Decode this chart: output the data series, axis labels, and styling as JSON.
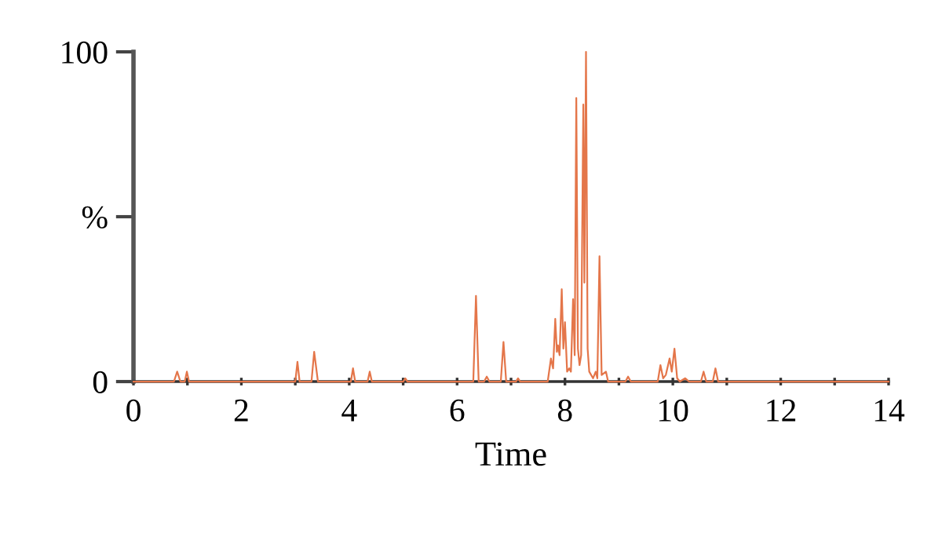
{
  "chart_data": {
    "type": "line",
    "xlabel": "Time",
    "x": [
      0,
      0.75,
      0.81,
      0.87,
      0.95,
      0.99,
      1.03,
      3.0,
      3.04,
      3.08,
      3.3,
      3.35,
      3.42,
      4.03,
      4.07,
      4.11,
      4.34,
      4.38,
      4.42,
      5.0,
      5.04,
      5.08,
      6.3,
      6.35,
      6.4,
      6.5,
      6.55,
      6.6,
      6.81,
      6.86,
      6.91,
      7.09,
      7.13,
      7.17,
      7.68,
      7.74,
      7.78,
      7.82,
      7.85,
      7.87,
      7.9,
      7.94,
      7.97,
      8.0,
      8.04,
      8.08,
      8.11,
      8.15,
      8.18,
      8.21,
      8.24,
      8.27,
      8.3,
      8.34,
      8.36,
      8.39,
      8.42,
      8.45,
      8.52,
      8.57,
      8.6,
      8.64,
      8.68,
      8.76,
      8.8,
      9.12,
      9.17,
      9.22,
      9.72,
      9.77,
      9.82,
      9.87,
      9.94,
      9.98,
      10.03,
      10.08,
      10.13,
      10.23,
      10.3,
      10.52,
      10.57,
      10.62,
      10.74,
      10.79,
      10.84,
      14
    ],
    "series": [
      {
        "color": "#e4764a",
        "values": [
          0,
          0,
          3,
          0,
          0,
          3,
          0,
          0,
          6,
          0,
          0,
          9,
          0,
          0,
          4,
          0,
          0,
          3,
          0,
          0,
          1,
          0,
          0,
          26,
          0,
          0,
          1.5,
          0,
          0,
          12,
          0,
          0,
          1,
          0,
          0,
          7,
          4,
          19,
          9,
          11,
          8,
          28,
          10,
          18,
          3,
          4,
          3,
          25,
          8,
          86,
          10,
          5,
          8,
          84,
          30,
          100,
          10,
          3,
          1,
          3,
          1,
          38,
          2,
          3,
          0,
          0,
          1.5,
          0,
          0,
          5,
          1,
          2,
          7,
          3,
          10,
          1,
          0,
          1,
          0,
          0,
          3,
          0,
          0,
          4,
          0,
          0
        ]
      }
    ],
    "xlim": [
      0,
      14
    ],
    "ylim": [
      0,
      100
    ],
    "xticks": [
      0,
      {
        "value": 1,
        "label": null
      },
      2,
      {
        "value": 3,
        "label": null
      },
      4,
      {
        "value": 5,
        "label": null
      },
      6,
      {
        "value": 7,
        "label": null
      },
      8,
      {
        "value": 9,
        "label": null
      },
      10,
      {
        "value": 11,
        "label": null
      },
      12,
      {
        "value": 13,
        "label": null
      },
      14
    ],
    "yticks": [
      0,
      {
        "value": 50,
        "label": "%"
      },
      100
    ],
    "grid": false,
    "legend": false
  }
}
